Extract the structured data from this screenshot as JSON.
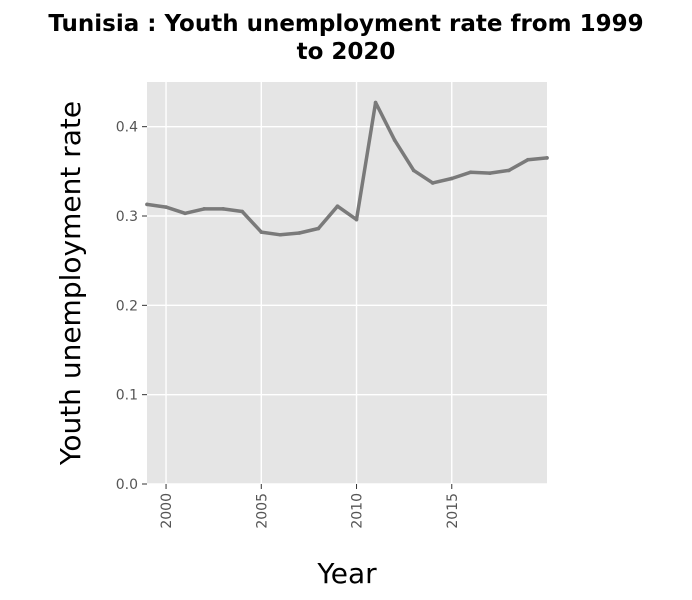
{
  "chart_data": {
    "type": "line",
    "title_line1": "Tunisia : Youth unemployment rate from 1999",
    "title_line2": "to 2020",
    "xlabel": "Year",
    "ylabel": "Youth unemployment rate",
    "xlim": [
      1999,
      2020
    ],
    "ylim": [
      0,
      0.45
    ],
    "x_ticks": [
      2000,
      2005,
      2010,
      2015
    ],
    "y_ticks": [
      0.0,
      0.1,
      0.2,
      0.3,
      0.4
    ],
    "y_tick_labels": [
      "0.0",
      "0.1",
      "0.2",
      "0.3",
      "0.4"
    ],
    "x_tick_labels": [
      "2000",
      "2005",
      "2010",
      "2015"
    ],
    "grid": true,
    "colors": {
      "panel": "#e5e5e5",
      "grid": "#ffffff",
      "line": "#7a7a7a"
    },
    "series": [
      {
        "x": [
          1999,
          2000,
          2001,
          2002,
          2003,
          2004,
          2005,
          2006,
          2007,
          2008,
          2009,
          2010,
          2011,
          2012,
          2013,
          2014,
          2015,
          2016,
          2017,
          2018,
          2019,
          2020
        ],
        "values": [
          0.313,
          0.31,
          0.303,
          0.308,
          0.308,
          0.305,
          0.282,
          0.279,
          0.281,
          0.286,
          0.311,
          0.296,
          0.427,
          0.385,
          0.351,
          0.337,
          0.342,
          0.349,
          0.348,
          0.351,
          0.363,
          0.365
        ]
      }
    ]
  }
}
